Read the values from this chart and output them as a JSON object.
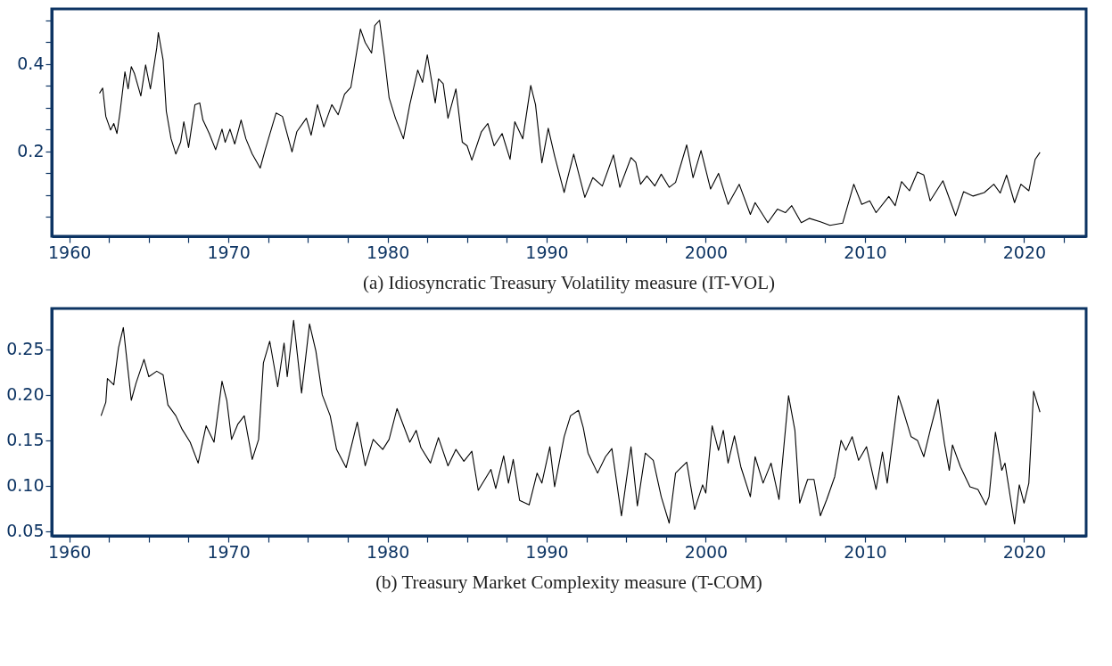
{
  "chart_data": [
    {
      "type": "line",
      "title": "(a) Idiosyncratic Treasury Volatility measure (IT-VOL)",
      "grid": false,
      "line_style": "solid",
      "marker": "none",
      "xlim": [
        1958.9,
        2023.9
      ],
      "xticks": [
        1960,
        {
          "value": 1962.5,
          "label": null
        },
        {
          "value": 1965,
          "label": null
        },
        {
          "value": 1967.5,
          "label": null
        },
        1970,
        {
          "value": 1972.5,
          "label": null
        },
        {
          "value": 1975,
          "label": null
        },
        {
          "value": 1977.5,
          "label": null
        },
        1980,
        {
          "value": 1982.5,
          "label": null
        },
        {
          "value": 1985,
          "label": null
        },
        {
          "value": 1987.5,
          "label": null
        },
        1990,
        {
          "value": 1992.5,
          "label": null
        },
        {
          "value": 1995,
          "label": null
        },
        {
          "value": 1997.5,
          "label": null
        },
        2000,
        {
          "value": 2002.5,
          "label": null
        },
        {
          "value": 2005,
          "label": null
        },
        {
          "value": 2007.5,
          "label": null
        },
        2010,
        {
          "value": 2012.5,
          "label": null
        },
        {
          "value": 2015,
          "label": null
        },
        {
          "value": 2017.5,
          "label": null
        },
        2020,
        {
          "value": 2022.5,
          "label": null
        }
      ],
      "ylim": [
        0.006,
        0.526
      ],
      "yticks": [
        {
          "value": 0.05,
          "label": null
        },
        {
          "value": 0.1,
          "label": null
        },
        {
          "value": 0.15,
          "label": null
        },
        0.2,
        {
          "value": 0.25,
          "label": null
        },
        {
          "value": 0.3,
          "label": null
        },
        {
          "value": 0.35,
          "label": null
        },
        0.4,
        {
          "value": 0.45,
          "label": null
        },
        {
          "value": 0.5,
          "label": null
        }
      ],
      "series": [
        {
          "color": "#000000",
          "x": [
            1961.9,
            1962.1,
            1962.3,
            1962.6,
            1962.8,
            1963.0,
            1963.2,
            1963.5,
            1963.7,
            1963.9,
            1964.1,
            1964.5,
            1964.8,
            1965.1,
            1965.5,
            1965.6,
            1965.9,
            1966.1,
            1966.4,
            1966.7,
            1967.0,
            1967.2,
            1967.5,
            1967.9,
            1968.2,
            1968.4,
            1968.8,
            1969.2,
            1969.6,
            1969.8,
            1970.1,
            1970.4,
            1970.8,
            1971.1,
            1971.5,
            1972.0,
            1972.3,
            1973.0,
            1973.4,
            1974.0,
            1974.3,
            1974.9,
            1975.2,
            1975.6,
            1976.0,
            1976.5,
            1976.9,
            1977.3,
            1977.7,
            1978.3,
            1978.6,
            1979.0,
            1979.2,
            1979.5,
            1979.8,
            1980.1,
            1980.5,
            1981.0,
            1981.4,
            1981.9,
            1982.2,
            1982.5,
            1983.0,
            1983.2,
            1983.5,
            1983.8,
            1984.3,
            1984.7,
            1985.0,
            1985.3,
            1985.9,
            1986.3,
            1986.7,
            1987.2,
            1987.7,
            1988.0,
            1988.5,
            1989.0,
            1989.3,
            1989.7,
            1990.1,
            1990.5,
            1991.1,
            1991.3,
            1991.7,
            1992.4,
            1992.9,
            1993.5,
            1994.2,
            1994.6,
            1995.3,
            1995.6,
            1995.9,
            1996.3,
            1996.8,
            1997.2,
            1997.7,
            1998.1,
            1998.8,
            1999.2,
            1999.7,
            2000.3,
            2000.8,
            2001.4,
            2002.1,
            2002.8,
            2003.1,
            2003.9,
            2004.5,
            2005.0,
            2005.4,
            2006.0,
            2006.5,
            2007.2,
            2007.8,
            2008.6,
            2009.3,
            2009.8,
            2010.3,
            2010.7,
            2011.5,
            2011.9,
            2012.3,
            2012.8,
            2013.3,
            2013.7,
            2014.1,
            2014.9,
            2015.7,
            2016.2,
            2016.8,
            2017.5,
            2018.1,
            2018.5,
            2018.9,
            2019.4,
            2019.8,
            2020.3,
            2020.7,
            2021.0
          ],
          "values": [
            0.333,
            0.345,
            0.28,
            0.249,
            0.264,
            0.241,
            0.292,
            0.382,
            0.343,
            0.394,
            0.378,
            0.327,
            0.398,
            0.343,
            0.437,
            0.472,
            0.409,
            0.292,
            0.229,
            0.194,
            0.221,
            0.268,
            0.209,
            0.307,
            0.311,
            0.272,
            0.241,
            0.204,
            0.251,
            0.221,
            0.251,
            0.217,
            0.272,
            0.229,
            0.194,
            0.162,
            0.202,
            0.288,
            0.28,
            0.199,
            0.245,
            0.276,
            0.237,
            0.307,
            0.256,
            0.307,
            0.284,
            0.331,
            0.347,
            0.48,
            0.449,
            0.425,
            0.488,
            0.5,
            0.417,
            0.323,
            0.276,
            0.229,
            0.307,
            0.386,
            0.358,
            0.421,
            0.311,
            0.366,
            0.355,
            0.276,
            0.343,
            0.221,
            0.213,
            0.18,
            0.245,
            0.264,
            0.213,
            0.241,
            0.182,
            0.268,
            0.229,
            0.351,
            0.307,
            0.174,
            0.253,
            0.19,
            0.106,
            0.137,
            0.194,
            0.095,
            0.14,
            0.121,
            0.192,
            0.118,
            0.186,
            0.175,
            0.125,
            0.144,
            0.121,
            0.148,
            0.118,
            0.129,
            0.215,
            0.14,
            0.202,
            0.114,
            0.15,
            0.079,
            0.125,
            0.056,
            0.083,
            0.037,
            0.068,
            0.06,
            0.076,
            0.037,
            0.047,
            0.039,
            0.031,
            0.036,
            0.125,
            0.079,
            0.087,
            0.06,
            0.097,
            0.076,
            0.131,
            0.11,
            0.153,
            0.146,
            0.087,
            0.133,
            0.053,
            0.108,
            0.098,
            0.106,
            0.125,
            0.105,
            0.146,
            0.083,
            0.125,
            0.11,
            0.182,
            0.198
          ]
        }
      ]
    },
    {
      "type": "line",
      "title": "(b) Treasury Market Complexity measure (T-COM)",
      "grid": false,
      "line_style": "solid",
      "marker": "none",
      "xlim": [
        1958.9,
        2023.9
      ],
      "xticks": [
        1960,
        {
          "value": 1962.5,
          "label": null
        },
        {
          "value": 1965,
          "label": null
        },
        {
          "value": 1967.5,
          "label": null
        },
        1970,
        {
          "value": 1972.5,
          "label": null
        },
        {
          "value": 1975,
          "label": null
        },
        {
          "value": 1977.5,
          "label": null
        },
        1980,
        {
          "value": 1982.5,
          "label": null
        },
        {
          "value": 1985,
          "label": null
        },
        {
          "value": 1987.5,
          "label": null
        },
        1990,
        {
          "value": 1992.5,
          "label": null
        },
        {
          "value": 1995,
          "label": null
        },
        {
          "value": 1997.5,
          "label": null
        },
        2000,
        {
          "value": 2002.5,
          "label": null
        },
        {
          "value": 2005,
          "label": null
        },
        {
          "value": 2007.5,
          "label": null
        },
        2010,
        {
          "value": 2012.5,
          "label": null
        },
        {
          "value": 2015,
          "label": null
        },
        {
          "value": 2017.5,
          "label": null
        },
        2020,
        {
          "value": 2022.5,
          "label": null
        }
      ],
      "ylim": [
        0.045,
        0.295
      ],
      "yticks": [
        {
          "value": 0.05,
          "label": "0.05"
        },
        {
          "value": 0.1,
          "label": "0.10"
        },
        {
          "value": 0.15,
          "label": "0.15"
        },
        {
          "value": 0.2,
          "label": "0.20"
        },
        0.25
      ],
      "series": [
        {
          "color": "#000000",
          "x": [
            1962.0,
            1962.3,
            1962.4,
            1962.8,
            1963.1,
            1963.4,
            1963.7,
            1963.9,
            1964.2,
            1964.7,
            1965.0,
            1965.5,
            1965.9,
            1966.2,
            1966.7,
            1967.1,
            1967.6,
            1968.1,
            1968.6,
            1969.1,
            1969.6,
            1969.9,
            1970.2,
            1970.6,
            1971.0,
            1971.5,
            1971.9,
            1972.2,
            1972.6,
            1973.1,
            1973.5,
            1973.7,
            1974.1,
            1974.6,
            1975.1,
            1975.5,
            1975.9,
            1976.4,
            1976.8,
            1977.4,
            1978.1,
            1978.6,
            1979.1,
            1979.7,
            1980.1,
            1980.6,
            1981.4,
            1981.8,
            1982.1,
            1982.7,
            1983.2,
            1983.8,
            1984.3,
            1984.8,
            1985.3,
            1985.7,
            1986.5,
            1986.8,
            1987.3,
            1987.6,
            1987.9,
            1988.3,
            1988.9,
            1989.4,
            1989.7,
            1990.2,
            1990.5,
            1991.1,
            1991.5,
            1992.0,
            1992.3,
            1992.6,
            1993.2,
            1993.7,
            1994.1,
            1994.7,
            1995.3,
            1995.7,
            1996.2,
            1996.7,
            1997.2,
            1997.7,
            1998.1,
            1998.8,
            1999.3,
            1999.8,
            2000.0,
            2000.4,
            2000.8,
            2001.1,
            2001.4,
            2001.8,
            2002.2,
            2002.8,
            2003.1,
            2003.6,
            2004.1,
            2004.6,
            2005.2,
            2005.6,
            2005.9,
            2006.4,
            2006.8,
            2007.2,
            2007.6,
            2008.1,
            2008.5,
            2008.8,
            2009.2,
            2009.6,
            2010.1,
            2010.7,
            2011.1,
            2011.4,
            2012.1,
            2012.4,
            2012.9,
            2013.3,
            2013.7,
            2014.1,
            2014.6,
            2015.0,
            2015.3,
            2015.5,
            2016.0,
            2016.6,
            2017.1,
            2017.6,
            2017.8,
            2018.2,
            2018.6,
            2018.8,
            2019.4,
            2019.7,
            2020.0,
            2020.3,
            2020.6,
            2021.0
          ],
          "values": [
            0.177,
            0.192,
            0.218,
            0.211,
            0.252,
            0.274,
            0.226,
            0.194,
            0.213,
            0.239,
            0.22,
            0.226,
            0.222,
            0.189,
            0.177,
            0.162,
            0.148,
            0.125,
            0.166,
            0.148,
            0.215,
            0.194,
            0.151,
            0.168,
            0.177,
            0.129,
            0.151,
            0.235,
            0.259,
            0.209,
            0.257,
            0.22,
            0.282,
            0.202,
            0.278,
            0.248,
            0.2,
            0.177,
            0.14,
            0.12,
            0.17,
            0.122,
            0.151,
            0.14,
            0.151,
            0.185,
            0.148,
            0.161,
            0.142,
            0.125,
            0.153,
            0.122,
            0.14,
            0.127,
            0.138,
            0.095,
            0.118,
            0.097,
            0.133,
            0.103,
            0.129,
            0.084,
            0.079,
            0.114,
            0.103,
            0.143,
            0.099,
            0.154,
            0.177,
            0.183,
            0.164,
            0.136,
            0.114,
            0.132,
            0.141,
            0.067,
            0.143,
            0.078,
            0.136,
            0.128,
            0.088,
            0.059,
            0.114,
            0.126,
            0.074,
            0.101,
            0.092,
            0.166,
            0.139,
            0.161,
            0.125,
            0.155,
            0.121,
            0.088,
            0.132,
            0.103,
            0.125,
            0.085,
            0.199,
            0.161,
            0.081,
            0.107,
            0.107,
            0.067,
            0.085,
            0.11,
            0.15,
            0.139,
            0.154,
            0.128,
            0.143,
            0.096,
            0.137,
            0.103,
            0.199,
            0.183,
            0.154,
            0.15,
            0.132,
            0.161,
            0.195,
            0.146,
            0.117,
            0.145,
            0.121,
            0.099,
            0.096,
            0.079,
            0.088,
            0.159,
            0.117,
            0.125,
            0.058,
            0.101,
            0.081,
            0.103,
            0.204,
            0.181
          ]
        }
      ]
    }
  ]
}
